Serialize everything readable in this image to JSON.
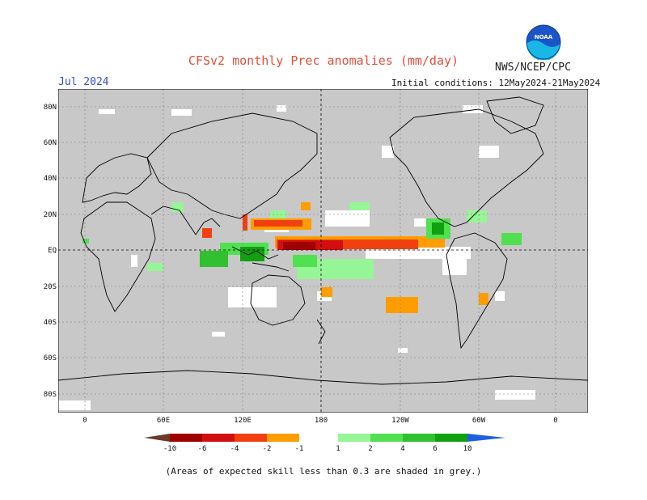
{
  "header": {
    "title": "CFSv2 monthly Prec anomalies (mm/day)",
    "agency": "NWS/NCEP/CPC",
    "month": "Jul 2024",
    "initial_conditions": "Initial conditions: 12May2024-21May2024",
    "logo_text": "NOAA"
  },
  "map": {
    "lat_labels": [
      "80N",
      "60N",
      "40N",
      "20N",
      "EQ",
      "20S",
      "40S",
      "60S",
      "80S"
    ],
    "lon_labels": [
      "0",
      "60E",
      "120E",
      "180",
      "120W",
      "60W",
      "0"
    ],
    "colors": {
      "skill_mask": "#c8c8c8",
      "coast": "#000000"
    }
  },
  "colorbar": {
    "labels": [
      "-10",
      "-6",
      "-4",
      "-2",
      "-1",
      "1",
      "2",
      "4",
      "6",
      "10"
    ],
    "dry_colors": [
      "#6b3a2a",
      "#a00000",
      "#d01010",
      "#f04010",
      "#ff9d00"
    ],
    "wet_colors": [
      "#96f596",
      "#50e050",
      "#30c030",
      "#10a010",
      "#2060e0"
    ]
  },
  "footnote": "(Areas of expected skill less than 0.3 are shaded in grey.)"
}
